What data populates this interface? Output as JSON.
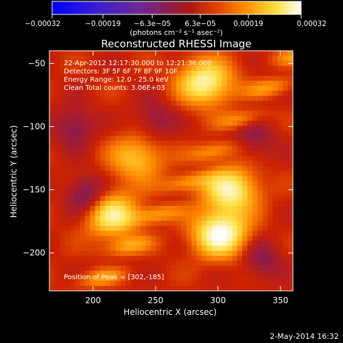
{
  "chart_data": {
    "type": "heatmap",
    "title": "Reconstructed RHESSI Image",
    "xlabel": "Heliocentric X (arcsec)",
    "ylabel": "Heliocentric Y (arcsec)",
    "xlim": [
      165,
      360
    ],
    "ylim": [
      -230,
      -40
    ],
    "x_ticks": [
      200,
      250,
      300,
      350
    ],
    "y_ticks": [
      -50,
      -100,
      -150,
      -200
    ],
    "y_tick_labels": [
      "−50",
      "−100",
      "−150",
      "−200"
    ],
    "colorbar": {
      "ticks": [
        "−0.00032",
        "−0.00019",
        "−6.3e−05",
        "6.3e−05",
        "0.00019",
        "0.00032"
      ],
      "range": [
        -0.00032,
        0.00032
      ],
      "unit_label": "(photons cm⁻² s⁻¹ asec⁻²)",
      "colormap": "rainbow-to-hot",
      "colors": [
        "#0000ff",
        "#5a2ba8",
        "#8c1a50",
        "#cc2200",
        "#ff8800",
        "#ffe040",
        "#ffffff"
      ]
    },
    "annotations": [
      "22-Apr-2012 12:17:30.000 to 12:21:36.000",
      "Detectors: 3F 5F 6F 7F 8F 9F 10F",
      "Energy Range: 12.0 - 25.0 keV",
      "Clean     Total counts: 3.06E+03"
    ],
    "peak_label": "Position of Peak = [302,-185]",
    "peak_position": [
      302,
      -185
    ],
    "grid_shape": [
      48,
      48
    ],
    "values_note_peaks": [
      {
        "x": 302,
        "y": -185,
        "value": 0.00032
      },
      {
        "x": 290,
        "y": -65,
        "value": 0.00028
      },
      {
        "x": 310,
        "y": -150,
        "value": 0.00027
      },
      {
        "x": 215,
        "y": -170,
        "value": 0.00026
      },
      {
        "x": 235,
        "y": -125,
        "value": 0.00018
      }
    ],
    "minima": [
      {
        "x": 185,
        "y": -100,
        "value": -0.00012
      },
      {
        "x": 195,
        "y": -155,
        "value": -0.00016
      },
      {
        "x": 250,
        "y": -95,
        "value": -0.0001
      },
      {
        "x": 335,
        "y": -205,
        "value": -0.00011
      },
      {
        "x": 330,
        "y": -110,
        "value": -9e-05
      }
    ]
  },
  "footer": {
    "date": "2-May-2014 16:32"
  }
}
